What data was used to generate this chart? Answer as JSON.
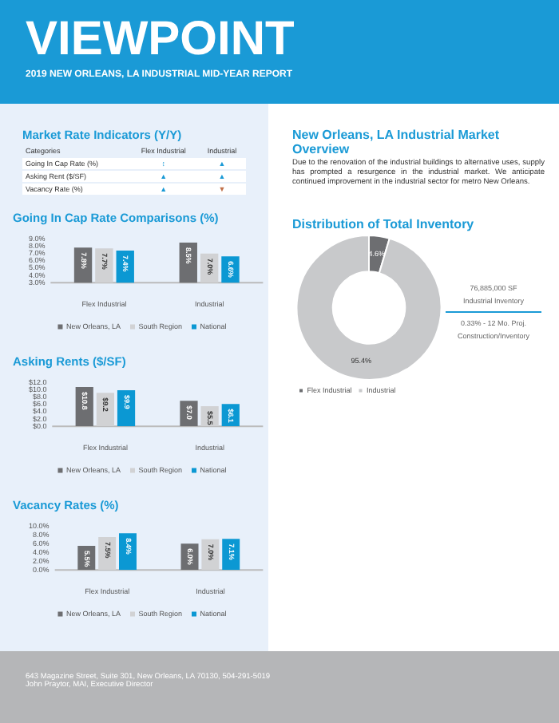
{
  "chart_data": [
    {
      "type": "other",
      "title": "VIEWPOINT",
      "subtitle": "2019 NEW ORLEANS, LA INDUSTRIAL MID-YEAR REPORT"
    },
    {
      "type": "other",
      "title": "Market Rate Indicators (Y/Y)",
      "categories": [
        "Going In Cap Rate (%)",
        "Asking Rent ($/SF)",
        "Vacancy Rate (%)"
      ],
      "annotations": [
        "Categories",
        "Flex Industrial",
        "Industrial"
      ],
      "cell_labels": [
        [
          "↕",
          "▲"
        ],
        [
          "▲",
          "▲"
        ],
        [
          "▲",
          "▼"
        ]
      ]
    },
    {
      "type": "bar",
      "title": "Going In Cap Rate Comparisons (%)",
      "categories": [
        "Flex Industrial",
        "Industrial"
      ],
      "ylim": [
        3,
        9
      ],
      "yticks": [
        {
          "value": 3,
          "label": "3.0%"
        },
        {
          "value": 4,
          "label": "4.0%"
        },
        {
          "value": 5,
          "label": "5.0%"
        },
        {
          "value": 6,
          "label": "6.0%"
        },
        {
          "value": 7,
          "label": "7.0%"
        },
        {
          "value": 8,
          "label": "8.0%"
        },
        {
          "value": 9,
          "label": "9.0%"
        }
      ],
      "legend": "bottom",
      "series": [
        {
          "name": "New Orleans, LA",
          "color": "#6d6e71",
          "values": [
            7.8,
            8.5
          ],
          "value_labels": [
            "7.8%",
            "8.5%"
          ]
        },
        {
          "name": "South Region",
          "color": "#d1d2d4",
          "values": [
            7.7,
            7.0
          ],
          "value_labels": [
            "7.7%",
            "7.0%"
          ]
        },
        {
          "name": "National",
          "color": "#0b98d3",
          "values": [
            7.4,
            6.6
          ],
          "value_labels": [
            "7.4%",
            "6.6%"
          ]
        }
      ]
    },
    {
      "type": "bar",
      "title": "Asking Rents ($/SF)",
      "categories": [
        "Flex Industrial",
        "Industrial"
      ],
      "ylim": [
        0,
        12
      ],
      "yticks": [
        {
          "value": 0,
          "label": "$0.0"
        },
        {
          "value": 2,
          "label": "$2.0"
        },
        {
          "value": 4,
          "label": "$4.0"
        },
        {
          "value": 6,
          "label": "$6.0"
        },
        {
          "value": 8,
          "label": "$8.0"
        },
        {
          "value": 10,
          "label": "$10.0"
        },
        {
          "value": 12,
          "label": "$12.0"
        }
      ],
      "legend": "bottom",
      "series": [
        {
          "name": "New Orleans, LA",
          "color": "#6d6e71",
          "values": [
            10.8,
            7.0
          ],
          "value_labels": [
            "$10.8",
            "$7.0"
          ]
        },
        {
          "name": "South Region",
          "color": "#d1d2d4",
          "values": [
            9.2,
            5.5
          ],
          "value_labels": [
            "$9.2",
            "$5.5"
          ]
        },
        {
          "name": "National",
          "color": "#0b98d3",
          "values": [
            9.9,
            6.1
          ],
          "value_labels": [
            "$9.9",
            "$6.1"
          ]
        }
      ]
    },
    {
      "type": "bar",
      "title": "Vacancy Rates (%)",
      "categories": [
        "Flex Industrial",
        "Industrial"
      ],
      "ylim": [
        0,
        10
      ],
      "yticks": [
        {
          "value": 0,
          "label": "0.0%"
        },
        {
          "value": 2,
          "label": "2.0%"
        },
        {
          "value": 4,
          "label": "4.0%"
        },
        {
          "value": 6,
          "label": "6.0%"
        },
        {
          "value": 8,
          "label": "8.0%"
        },
        {
          "value": 10,
          "label": "10.0%"
        }
      ],
      "legend": "bottom",
      "series": [
        {
          "name": "New Orleans, LA",
          "color": "#6d6e71",
          "values": [
            5.5,
            6.0
          ],
          "value_labels": [
            "5.5%",
            "6.0%"
          ]
        },
        {
          "name": "South Region",
          "color": "#d1d2d4",
          "values": [
            7.5,
            7.0
          ],
          "value_labels": [
            "7.5%",
            "7.0%"
          ]
        },
        {
          "name": "National",
          "color": "#0b98d3",
          "values": [
            8.4,
            7.1
          ],
          "value_labels": [
            "8.4%",
            "7.1%"
          ]
        }
      ]
    },
    {
      "type": "other",
      "title": "New Orleans, LA Industrial Market Overview",
      "annotations": [
        "Due to the renovation of the industrial buildings to alternative uses, supply has prompted a resurgence in the industrial market.  We anticipate continued improvement in the industrial sector for metro New Orleans."
      ]
    },
    {
      "type": "donut",
      "title": "Distribution of Total Inventory",
      "categories": [
        "Flex Industrial",
        "Industrial"
      ],
      "values": [
        4.6,
        95.4
      ],
      "colors": [
        "#6d6e71",
        "#c8c9cb"
      ],
      "value_labels": [
        "4.6%",
        "95.4%"
      ],
      "legend": "bottom",
      "annotations": [
        "76,885,000 SF",
        "Industrial Inventory",
        "0.33% - 12 Mo. Proj.",
        "Construction/Inventory"
      ]
    },
    {
      "type": "other",
      "annotations": [
        "643 Magazine Street, Suite 301, New Orleans, LA 70130, 504-291-5019",
        "John Praytor, MAI, Executive Director"
      ]
    }
  ]
}
